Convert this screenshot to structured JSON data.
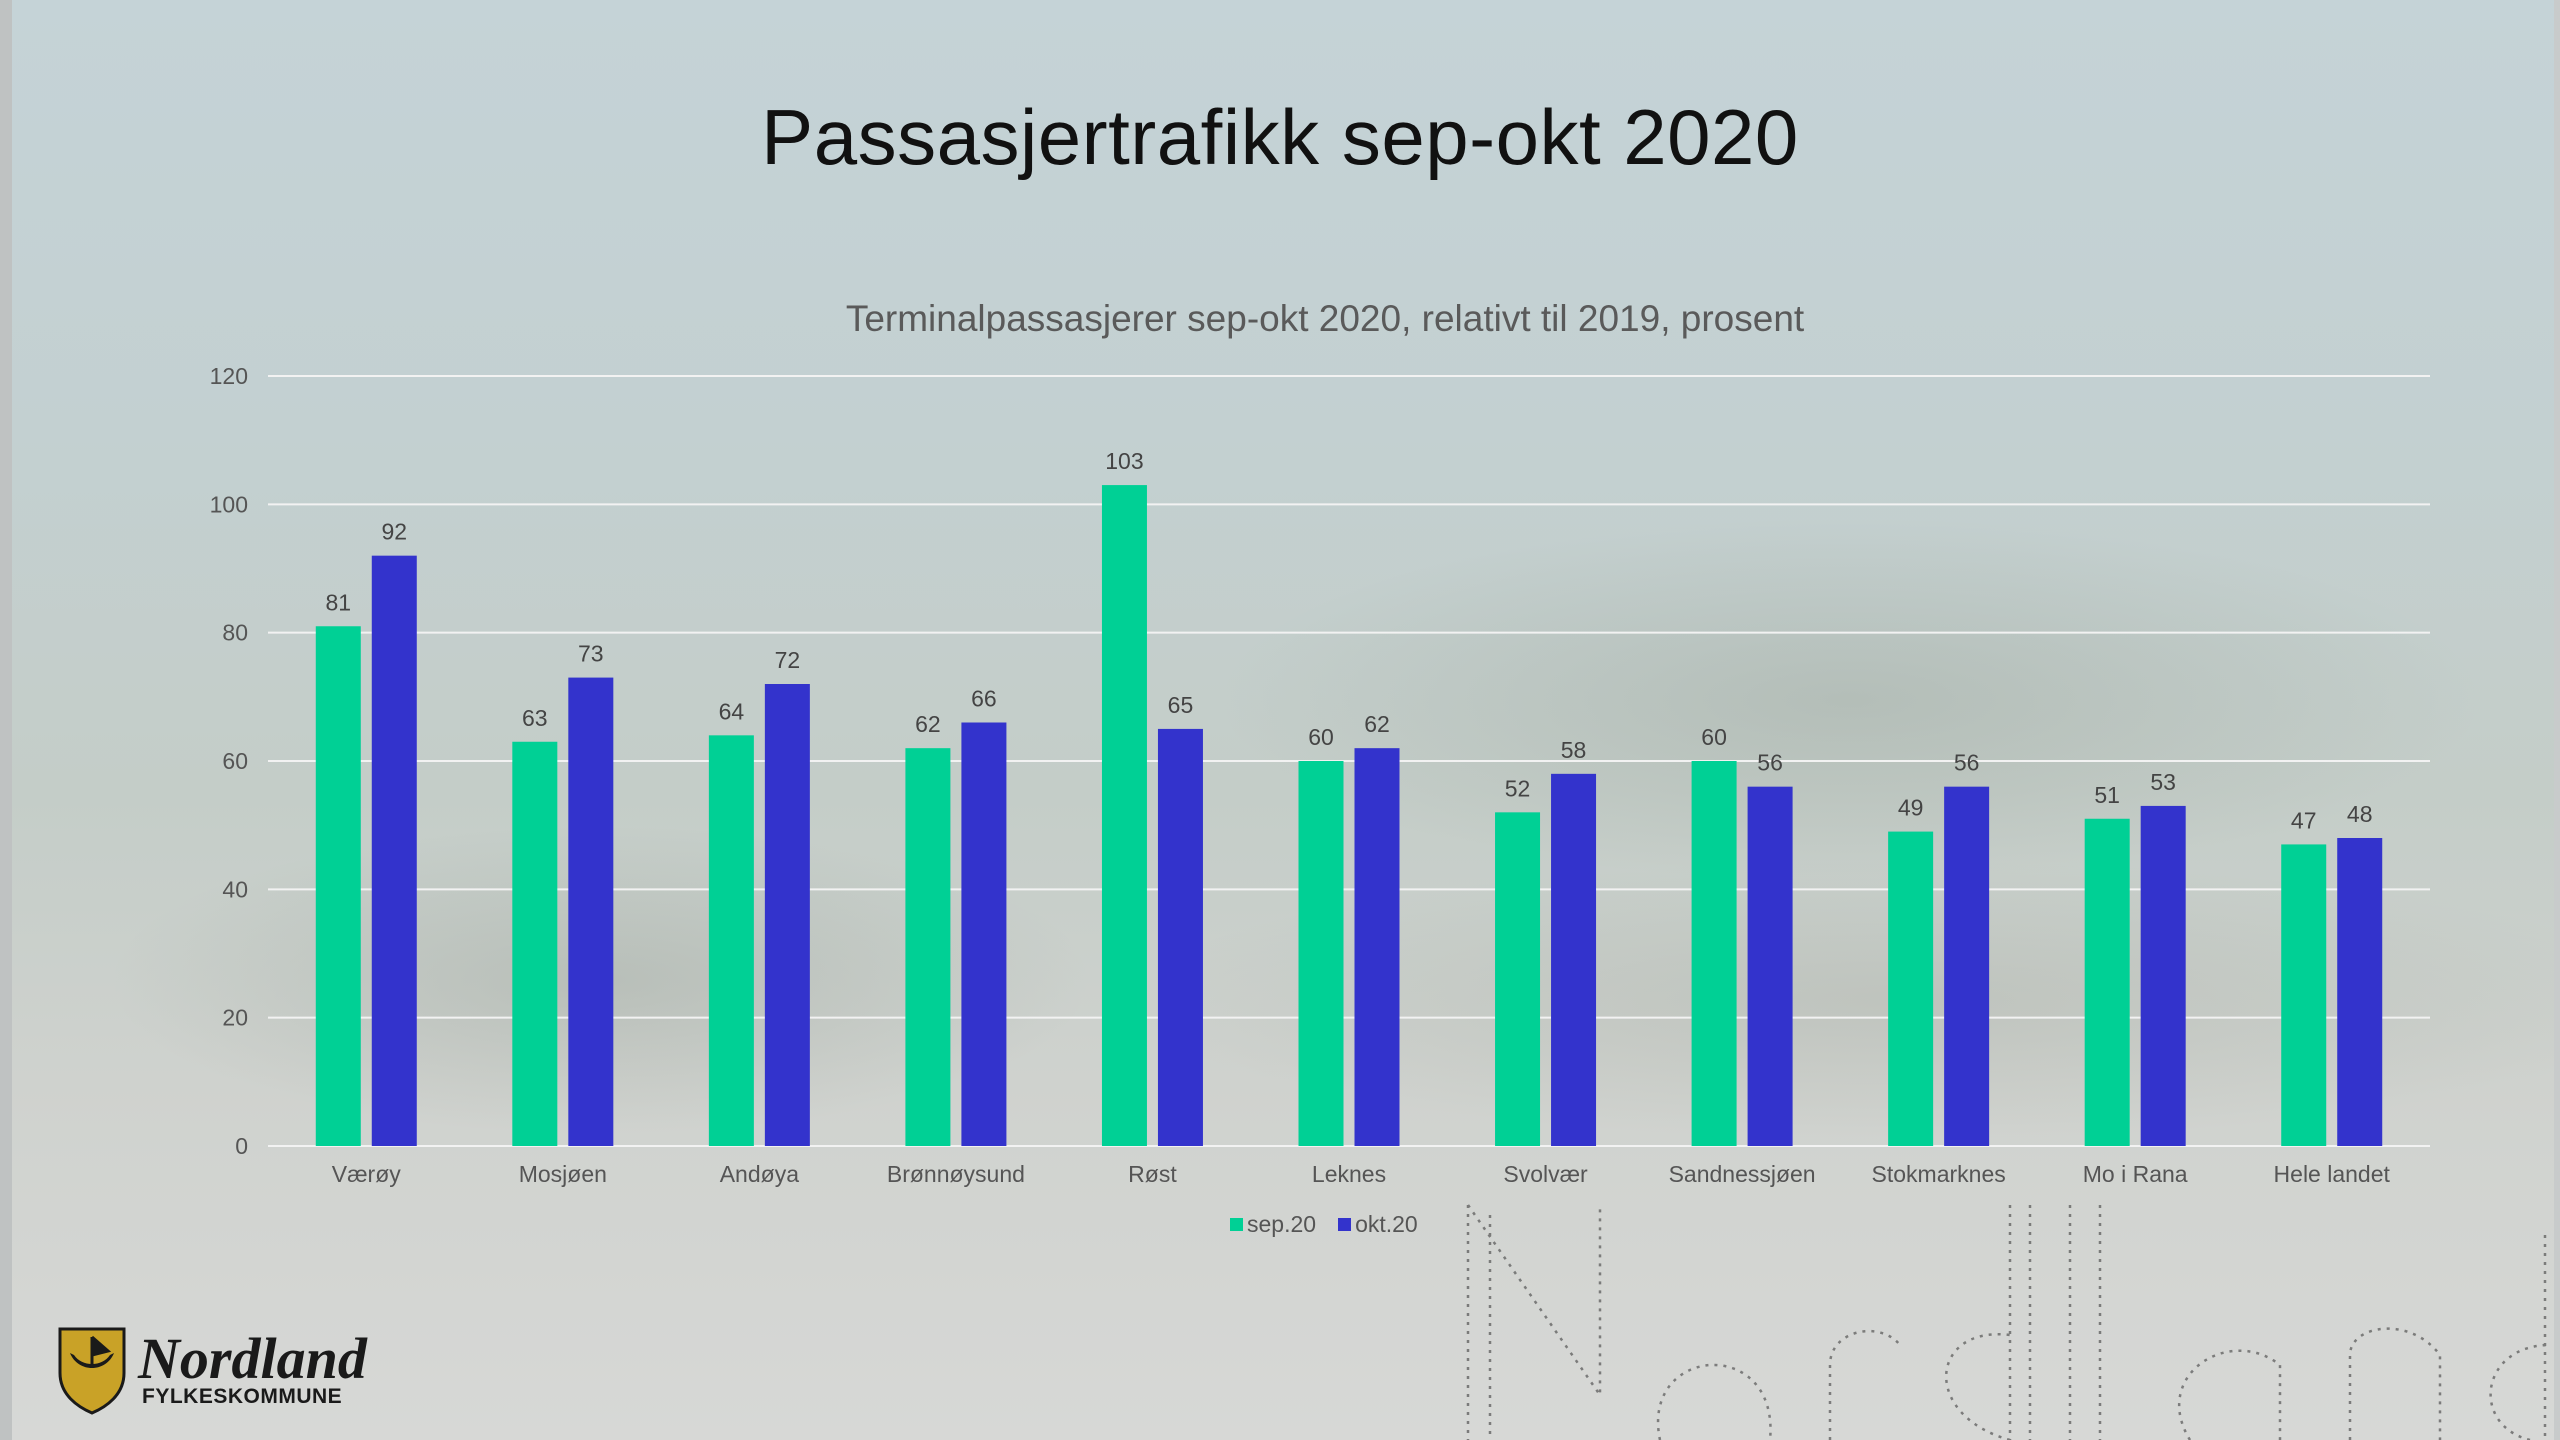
{
  "slide": {
    "title": "Passasjertrafikk sep-okt 2020"
  },
  "logo": {
    "name": "Nordland",
    "subtitle": "FYLKESKOMMUNE"
  },
  "colors": {
    "sep": "#00d095",
    "okt": "#3333cc",
    "grid": "#f2f2f2",
    "axis_text": "#555555"
  },
  "chart_data": {
    "type": "bar",
    "title": "Terminalpassasjerer sep-okt 2020, relativt til 2019, prosent",
    "categories": [
      "Værøy",
      "Mosjøen",
      "Andøya",
      "Brønnøysund",
      "Røst",
      "Leknes",
      "Svolvær",
      "Sandnessjøen",
      "Stokmarknes",
      "Mo i Rana",
      "Hele landet"
    ],
    "series": [
      {
        "name": "sep.20",
        "values": [
          81,
          63,
          64,
          62,
          103,
          60,
          52,
          60,
          49,
          51,
          47
        ]
      },
      {
        "name": "okt.20",
        "values": [
          92,
          73,
          72,
          66,
          65,
          62,
          58,
          56,
          56,
          53,
          48
        ]
      }
    ],
    "ylim": [
      0,
      120
    ],
    "yticks": [
      0,
      20,
      40,
      60,
      80,
      100,
      120
    ],
    "grid": true,
    "legend": "bottom-center",
    "data_labels": true
  }
}
